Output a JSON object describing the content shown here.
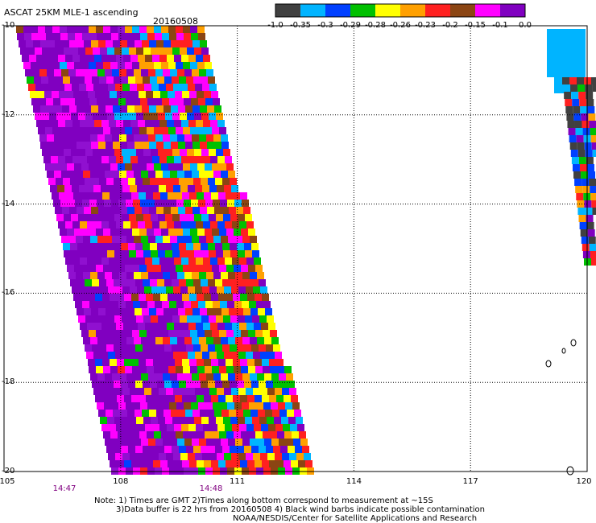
{
  "title": {
    "product": "ASCAT 25KM MLE-1 ascending",
    "date": "20160508"
  },
  "colorbar": {
    "colors": [
      "#404040",
      "#00b4ff",
      "#0040ff",
      "#00c000",
      "#ffff00",
      "#ffa000",
      "#ff2020",
      "#8b4513",
      "#ff00ff",
      "#8000c0"
    ],
    "labels": [
      "-1.0",
      "-0.35",
      "-0.3",
      "-0.29",
      "-0.28",
      "-0.26",
      "-0.23",
      "-0.2",
      "-0.15",
      "-0.1",
      "0.0"
    ]
  },
  "axes": {
    "lat_labels": [
      "-10",
      "-12",
      "-14",
      "-16",
      "-18",
      "-20"
    ],
    "lon_labels": [
      "105",
      "108",
      "111",
      "114",
      "117",
      "120"
    ],
    "time_labels": [
      "14:47",
      "14:48"
    ]
  },
  "notes": {
    "line1": "Note: 1) Times are GMT 2)Times along bottom correspond to measurement at ~15S",
    "line2": "3)Data buffer is 22 hrs from 20160508 4) Black wind barbs indicate possible contamination",
    "line3": "NOAA/NESDIS/Center for Satellite Applications and Research"
  }
}
